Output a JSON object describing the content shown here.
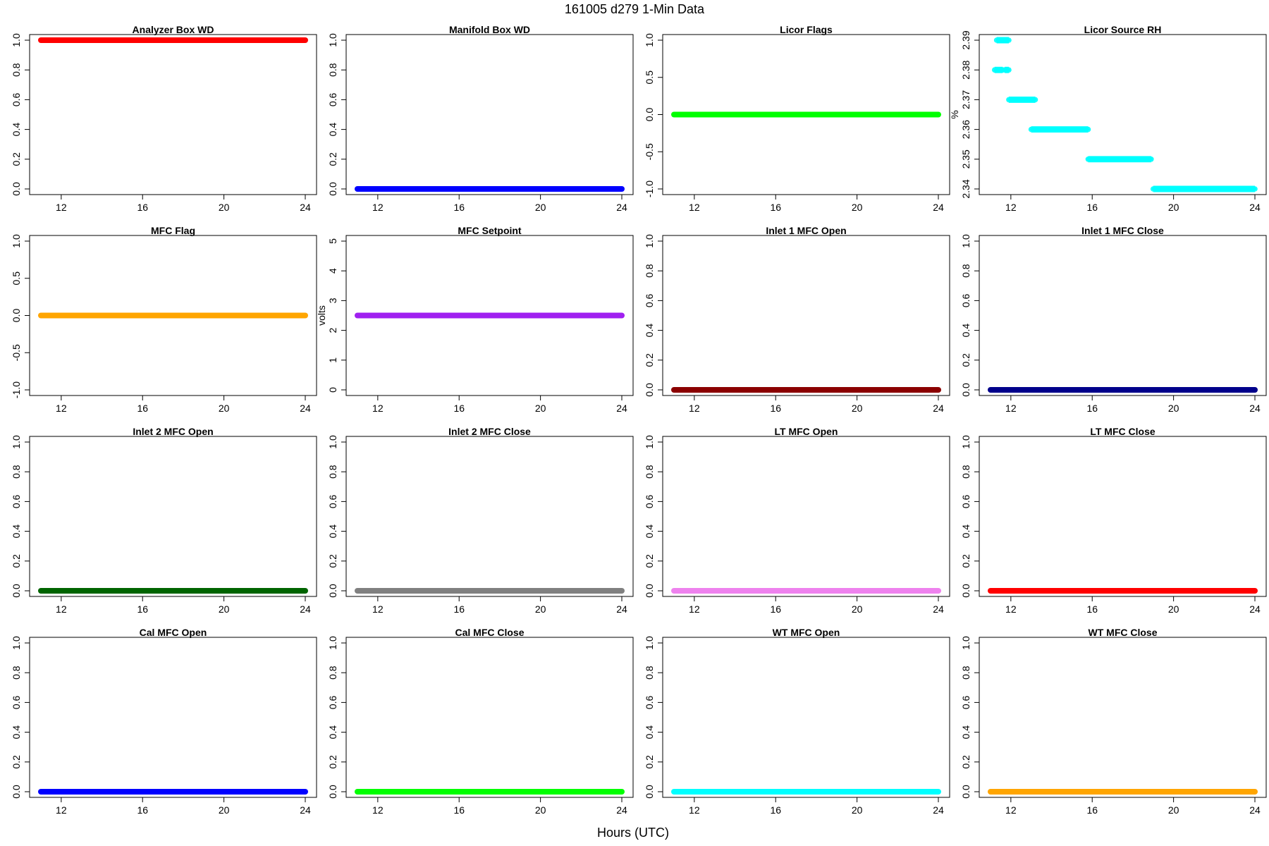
{
  "figure": {
    "title": "161005   d279   1-Min Data",
    "xlabel": "Hours (UTC)"
  },
  "chart_data": [
    {
      "type": "scatter",
      "title": "Analyzer Box WD",
      "ylabel": "",
      "color": "#ff0000",
      "x": [
        11,
        24
      ],
      "y": [
        1.0,
        1.0
      ],
      "xlim": [
        11,
        24
      ],
      "xticks": [
        "12",
        "16",
        "20",
        "24"
      ],
      "ylim": [
        0,
        1
      ],
      "yticks": [
        "0.0",
        "0.2",
        "0.4",
        "0.6",
        "0.8",
        "1.0"
      ]
    },
    {
      "type": "scatter",
      "title": "Manifold Box WD",
      "ylabel": "",
      "color": "#0000ff",
      "x": [
        11,
        24
      ],
      "y": [
        0,
        0
      ],
      "xlim": [
        11,
        24
      ],
      "xticks": [
        "12",
        "16",
        "20",
        "24"
      ],
      "ylim": [
        0,
        1
      ],
      "yticks": [
        "0.0",
        "0.2",
        "0.4",
        "0.6",
        "0.8",
        "1.0"
      ]
    },
    {
      "type": "scatter",
      "title": "Licor Flags",
      "ylabel": "",
      "color": "#00ff00",
      "x": [
        11,
        24
      ],
      "y": [
        0,
        0
      ],
      "xlim": [
        11,
        24
      ],
      "xticks": [
        "12",
        "16",
        "20",
        "24"
      ],
      "ylim": [
        -1,
        1
      ],
      "yticks": [
        "-1.0",
        "-0.5",
        "0.0",
        "0.5",
        "1.0"
      ]
    },
    {
      "type": "scatter",
      "title": "Licor Source RH",
      "ylabel": "%",
      "color": "#00ffff",
      "segments": [
        {
          "x": [
            11.2,
            11.6
          ],
          "y": 2.38
        },
        {
          "x": [
            11.3,
            11.9
          ],
          "y": 2.39
        },
        {
          "x": [
            11.7,
            11.9
          ],
          "y": 2.38
        },
        {
          "x": [
            11.9,
            13.2
          ],
          "y": 2.37
        },
        {
          "x": [
            13.0,
            15.8
          ],
          "y": 2.36
        },
        {
          "x": [
            15.8,
            18.9
          ],
          "y": 2.35
        },
        {
          "x": [
            19.0,
            24.0
          ],
          "y": 2.34
        }
      ],
      "xlim": [
        11,
        24
      ],
      "xticks": [
        "12",
        "16",
        "20",
        "24"
      ],
      "ylim": [
        2.34,
        2.39
      ],
      "yticks": [
        "2.34",
        "2.35",
        "2.36",
        "2.37",
        "2.38",
        "2.39"
      ]
    },
    {
      "type": "scatter",
      "title": "MFC Flag",
      "ylabel": "",
      "color": "#ffa500",
      "x": [
        11,
        24
      ],
      "y": [
        0,
        0
      ],
      "xlim": [
        11,
        24
      ],
      "xticks": [
        "12",
        "16",
        "20",
        "24"
      ],
      "ylim": [
        -1,
        1
      ],
      "yticks": [
        "-1.0",
        "-0.5",
        "0.0",
        "0.5",
        "1.0"
      ]
    },
    {
      "type": "scatter",
      "title": "MFC Setpoint",
      "ylabel": "volts",
      "color": "#a020f0",
      "x": [
        11,
        24
      ],
      "y": [
        2.5,
        2.5
      ],
      "xlim": [
        11,
        24
      ],
      "xticks": [
        "12",
        "16",
        "20",
        "24"
      ],
      "ylim": [
        0,
        5
      ],
      "yticks": [
        "0",
        "1",
        "2",
        "3",
        "4",
        "5"
      ]
    },
    {
      "type": "scatter",
      "title": "Inlet 1 MFC Open",
      "ylabel": "",
      "color": "#8b0000",
      "x": [
        11,
        24
      ],
      "y": [
        0,
        0
      ],
      "xlim": [
        11,
        24
      ],
      "xticks": [
        "12",
        "16",
        "20",
        "24"
      ],
      "ylim": [
        0,
        1
      ],
      "yticks": [
        "0.0",
        "0.2",
        "0.4",
        "0.6",
        "0.8",
        "1.0"
      ]
    },
    {
      "type": "scatter",
      "title": "Inlet 1 MFC Close",
      "ylabel": "",
      "color": "#00008b",
      "x": [
        11,
        24
      ],
      "y": [
        0,
        0
      ],
      "xlim": [
        11,
        24
      ],
      "xticks": [
        "12",
        "16",
        "20",
        "24"
      ],
      "ylim": [
        0,
        1
      ],
      "yticks": [
        "0.0",
        "0.2",
        "0.4",
        "0.6",
        "0.8",
        "1.0"
      ]
    },
    {
      "type": "scatter",
      "title": "Inlet 2 MFC Open",
      "ylabel": "",
      "color": "#006400",
      "x": [
        11,
        24
      ],
      "y": [
        0,
        0
      ],
      "xlim": [
        11,
        24
      ],
      "xticks": [
        "12",
        "16",
        "20",
        "24"
      ],
      "ylim": [
        0,
        1
      ],
      "yticks": [
        "0.0",
        "0.2",
        "0.4",
        "0.6",
        "0.8",
        "1.0"
      ]
    },
    {
      "type": "scatter",
      "title": "Inlet 2 MFC Close",
      "ylabel": "",
      "color": "#808080",
      "x": [
        11,
        24
      ],
      "y": [
        0,
        0
      ],
      "xlim": [
        11,
        24
      ],
      "xticks": [
        "12",
        "16",
        "20",
        "24"
      ],
      "ylim": [
        0,
        1
      ],
      "yticks": [
        "0.0",
        "0.2",
        "0.4",
        "0.6",
        "0.8",
        "1.0"
      ]
    },
    {
      "type": "scatter",
      "title": "LT MFC Open",
      "ylabel": "",
      "color": "#ee82ee",
      "x": [
        11,
        24
      ],
      "y": [
        0,
        0
      ],
      "xlim": [
        11,
        24
      ],
      "xticks": [
        "12",
        "16",
        "20",
        "24"
      ],
      "ylim": [
        0,
        1
      ],
      "yticks": [
        "0.0",
        "0.2",
        "0.4",
        "0.6",
        "0.8",
        "1.0"
      ]
    },
    {
      "type": "scatter",
      "title": "LT MFC Close",
      "ylabel": "",
      "color": "#ff0000",
      "x": [
        11,
        24
      ],
      "y": [
        0,
        0
      ],
      "xlim": [
        11,
        24
      ],
      "xticks": [
        "12",
        "16",
        "20",
        "24"
      ],
      "ylim": [
        0,
        1
      ],
      "yticks": [
        "0.0",
        "0.2",
        "0.4",
        "0.6",
        "0.8",
        "1.0"
      ]
    },
    {
      "type": "scatter",
      "title": "Cal MFC Open",
      "ylabel": "",
      "color": "#0000ff",
      "x": [
        11,
        24
      ],
      "y": [
        0,
        0
      ],
      "xlim": [
        11,
        24
      ],
      "xticks": [
        "12",
        "16",
        "20",
        "24"
      ],
      "ylim": [
        0,
        1
      ],
      "yticks": [
        "0.0",
        "0.2",
        "0.4",
        "0.6",
        "0.8",
        "1.0"
      ]
    },
    {
      "type": "scatter",
      "title": "Cal MFC Close",
      "ylabel": "",
      "color": "#00ff00",
      "x": [
        11,
        24
      ],
      "y": [
        0,
        0
      ],
      "xlim": [
        11,
        24
      ],
      "xticks": [
        "12",
        "16",
        "20",
        "24"
      ],
      "ylim": [
        0,
        1
      ],
      "yticks": [
        "0.0",
        "0.2",
        "0.4",
        "0.6",
        "0.8",
        "1.0"
      ]
    },
    {
      "type": "scatter",
      "title": "WT MFC Open",
      "ylabel": "",
      "color": "#00ffff",
      "x": [
        11,
        24
      ],
      "y": [
        0,
        0
      ],
      "xlim": [
        11,
        24
      ],
      "xticks": [
        "12",
        "16",
        "20",
        "24"
      ],
      "ylim": [
        0,
        1
      ],
      "yticks": [
        "0.0",
        "0.2",
        "0.4",
        "0.6",
        "0.8",
        "1.0"
      ]
    },
    {
      "type": "scatter",
      "title": "WT MFC Close",
      "ylabel": "",
      "color": "#ffa500",
      "x": [
        11,
        24
      ],
      "y": [
        0,
        0
      ],
      "xlim": [
        11,
        24
      ],
      "xticks": [
        "12",
        "16",
        "20",
        "24"
      ],
      "ylim": [
        0,
        1
      ],
      "yticks": [
        "0.0",
        "0.2",
        "0.4",
        "0.6",
        "0.8",
        "1.0"
      ]
    }
  ]
}
